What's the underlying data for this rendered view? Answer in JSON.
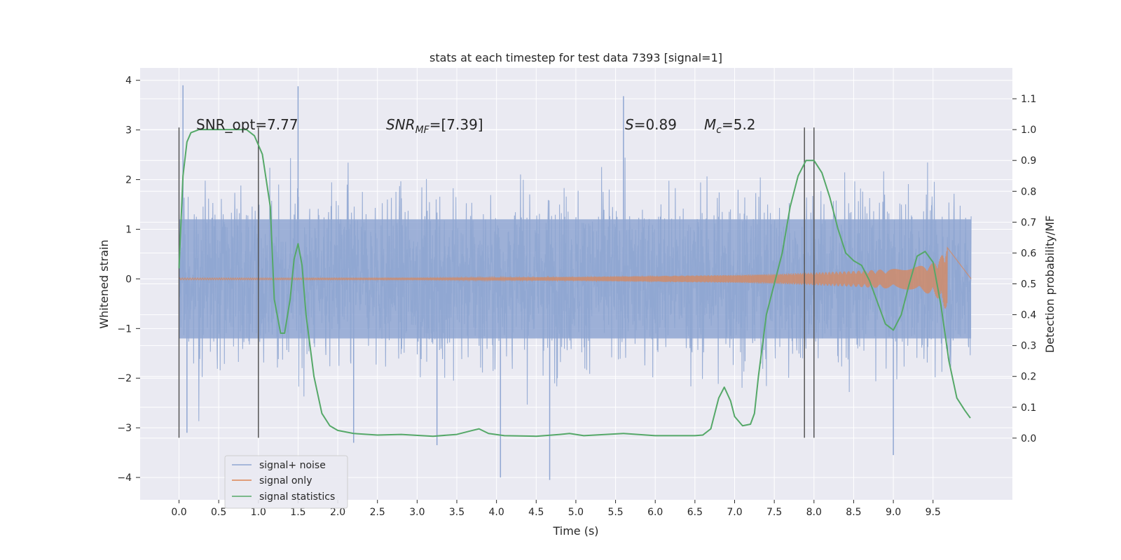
{
  "chart_data": {
    "type": "line",
    "title": "stats at each timestep for test data 7393 [signal=1]",
    "xlabel": "Time (s)",
    "ylabel": "Whitened strain",
    "y2label": "Detection probability/MF",
    "xlim": [
      -0.49,
      10.5
    ],
    "ylim": [
      -4.45,
      4.25
    ],
    "y2lim": [
      -0.2,
      1.2
    ],
    "xticks": [
      0.0,
      0.5,
      1.0,
      1.5,
      2.0,
      2.5,
      3.0,
      3.5,
      4.0,
      4.5,
      5.0,
      5.5,
      6.0,
      6.5,
      7.0,
      7.5,
      8.0,
      8.5,
      9.0,
      9.5
    ],
    "xtick_labels": [
      "0.0",
      "0.5",
      "1.0",
      "1.5",
      "2.0",
      "2.5",
      "3.0",
      "3.5",
      "4.0",
      "4.5",
      "5.0",
      "5.5",
      "6.0",
      "6.5",
      "7.0",
      "7.5",
      "8.0",
      "8.5",
      "9.0",
      "9.5"
    ],
    "yticks": [
      -4,
      -3,
      -2,
      -1,
      0,
      1,
      2,
      3,
      4
    ],
    "ytick_labels": [
      "−4",
      "−3",
      "−2",
      "−1",
      "0",
      "1",
      "2",
      "3",
      "4"
    ],
    "y2ticks": [
      0.0,
      0.1,
      0.2,
      0.3,
      0.4,
      0.5,
      0.6,
      0.7,
      0.8,
      0.9,
      1.0,
      1.1
    ],
    "y2tick_labels": [
      "0.0",
      "0.1",
      "0.2",
      "0.3",
      "0.4",
      "0.5",
      "0.6",
      "0.7",
      "0.8",
      "0.9",
      "1.0",
      "1.1"
    ],
    "grid": true,
    "legend_placement": "lower-left",
    "colors": {
      "background": "#eaeaf2",
      "grid": "#ffffff",
      "noise": "#8fa6d2",
      "signal_only": "#dd8452",
      "statistics": "#55a868",
      "vlines": "#555555"
    },
    "series": [
      {
        "name": "signal+ noise",
        "axis": "left",
        "t_range": [
          0.0,
          9.98
        ],
        "envelope_core": 1.2,
        "peak_max": 3.9,
        "peak_min": -4.05
      },
      {
        "name": "signal only",
        "axis": "left",
        "t": [
          0.0,
          1.0,
          2.0,
          3.0,
          4.0,
          5.0,
          6.0,
          7.0,
          7.5,
          8.0,
          8.5,
          9.0,
          9.3,
          9.5,
          9.6,
          9.65,
          9.68
        ],
        "amplitude": [
          0.02,
          0.02,
          0.02,
          0.02,
          0.03,
          0.04,
          0.06,
          0.08,
          0.1,
          0.13,
          0.16,
          0.2,
          0.25,
          0.32,
          0.45,
          0.6,
          0.65
        ]
      },
      {
        "name": "signal statistics",
        "axis": "right",
        "t": [
          0.0,
          0.05,
          0.1,
          0.15,
          0.25,
          0.4,
          0.6,
          0.85,
          0.95,
          1.05,
          1.15,
          1.2,
          1.28,
          1.33,
          1.4,
          1.45,
          1.5,
          1.55,
          1.6,
          1.7,
          1.8,
          1.9,
          2.0,
          2.2,
          2.5,
          2.8,
          3.2,
          3.5,
          3.7,
          3.78,
          3.9,
          4.1,
          4.5,
          4.8,
          4.92,
          5.1,
          5.6,
          6.0,
          6.5,
          6.6,
          6.7,
          6.8,
          6.87,
          6.95,
          7.0,
          7.1,
          7.2,
          7.25,
          7.3,
          7.4,
          7.5,
          7.6,
          7.7,
          7.8,
          7.9,
          8.0,
          8.1,
          8.2,
          8.3,
          8.4,
          8.5,
          8.6,
          8.7,
          8.8,
          8.9,
          9.0,
          9.1,
          9.2,
          9.3,
          9.4,
          9.5,
          9.6,
          9.7,
          9.8,
          9.9,
          9.97
        ],
        "values": [
          0.55,
          0.85,
          0.96,
          0.99,
          1.0,
          1.0,
          1.0,
          1.0,
          0.98,
          0.92,
          0.75,
          0.45,
          0.34,
          0.34,
          0.45,
          0.58,
          0.63,
          0.56,
          0.4,
          0.2,
          0.08,
          0.04,
          0.025,
          0.015,
          0.01,
          0.012,
          0.006,
          0.012,
          0.025,
          0.03,
          0.015,
          0.008,
          0.006,
          0.012,
          0.015,
          0.008,
          0.015,
          0.008,
          0.008,
          0.01,
          0.03,
          0.13,
          0.165,
          0.12,
          0.07,
          0.04,
          0.045,
          0.08,
          0.2,
          0.4,
          0.5,
          0.6,
          0.75,
          0.85,
          0.9,
          0.9,
          0.86,
          0.78,
          0.68,
          0.6,
          0.575,
          0.56,
          0.51,
          0.44,
          0.37,
          0.35,
          0.4,
          0.5,
          0.59,
          0.605,
          0.57,
          0.43,
          0.25,
          0.13,
          0.09,
          0.065
        ]
      }
    ],
    "vlines": [
      {
        "x": 0.0,
        "y_range": [
          -3.2,
          3.05
        ]
      },
      {
        "x": 1.0,
        "y_range": [
          -3.2,
          3.05
        ]
      },
      {
        "x": 7.88,
        "y_range": [
          -3.2,
          3.05
        ]
      },
      {
        "x": 8.0,
        "y_range": [
          -3.2,
          3.05
        ]
      }
    ],
    "annotations": [
      {
        "text": "SNR_opt=7.77",
        "x": 0.2,
        "y": 3.0
      },
      {
        "text": "SNR",
        "sub": "MF",
        "rest": "=[7.39]",
        "x": 2.6,
        "y": 3.0
      },
      {
        "text": "S",
        "rest": "=0.89",
        "x": 5.6,
        "y": 3.0
      },
      {
        "text": "M",
        "sub": "c",
        "rest": "=5.2",
        "x": 6.62,
        "y": 3.0
      }
    ]
  }
}
